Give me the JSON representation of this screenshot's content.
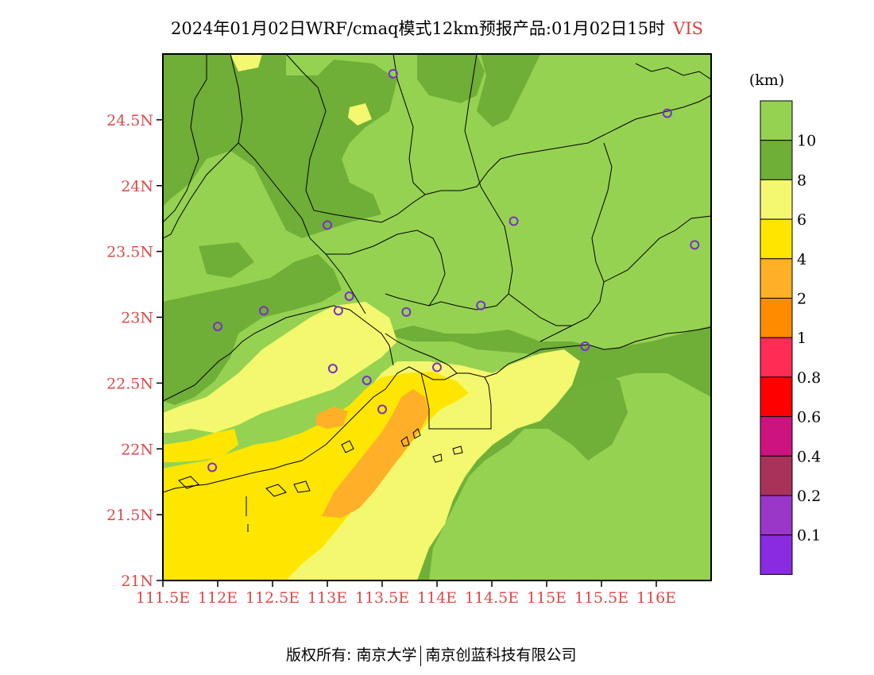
{
  "title": {
    "text": "2024年01月02日WRF/cmaq模式12km预报产品:01月02日15时",
    "variable": "VIS"
  },
  "map": {
    "lon_range": [
      111.5,
      116.5
    ],
    "lat_range": [
      21.0,
      25.0
    ],
    "lon_ticks": [
      {
        "value": 111.5,
        "label": "111.5E"
      },
      {
        "value": 112.0,
        "label": "112E"
      },
      {
        "value": 112.5,
        "label": "112.5E"
      },
      {
        "value": 113.0,
        "label": "113E"
      },
      {
        "value": 113.5,
        "label": "113.5E"
      },
      {
        "value": 114.0,
        "label": "114E"
      },
      {
        "value": 114.5,
        "label": "114.5E"
      },
      {
        "value": 115.0,
        "label": "115E"
      },
      {
        "value": 115.5,
        "label": "115.5E"
      },
      {
        "value": 116.0,
        "label": "116E"
      }
    ],
    "lat_ticks": [
      {
        "value": 21.0,
        "label": "21N"
      },
      {
        "value": 21.5,
        "label": "21.5N"
      },
      {
        "value": 22.0,
        "label": "22N"
      },
      {
        "value": 22.5,
        "label": "22.5N"
      },
      {
        "value": 23.0,
        "label": "23N"
      },
      {
        "value": 23.5,
        "label": "23.5N"
      },
      {
        "value": 24.0,
        "label": "24N"
      },
      {
        "value": 24.5,
        "label": "24.5N"
      }
    ],
    "stations": [
      {
        "lon": 113.6,
        "lat": 24.85
      },
      {
        "lon": 116.1,
        "lat": 24.55
      },
      {
        "lon": 113.0,
        "lat": 23.7
      },
      {
        "lon": 114.7,
        "lat": 23.73
      },
      {
        "lon": 116.35,
        "lat": 23.55
      },
      {
        "lon": 113.2,
        "lat": 23.16
      },
      {
        "lon": 112.42,
        "lat": 23.05
      },
      {
        "lon": 113.1,
        "lat": 23.05
      },
      {
        "lon": 113.72,
        "lat": 23.04
      },
      {
        "lon": 114.4,
        "lat": 23.09
      },
      {
        "lon": 112.0,
        "lat": 22.93
      },
      {
        "lon": 115.35,
        "lat": 22.78
      },
      {
        "lon": 113.05,
        "lat": 22.61
      },
      {
        "lon": 114.0,
        "lat": 22.62
      },
      {
        "lon": 113.36,
        "lat": 22.52
      },
      {
        "lon": 113.5,
        "lat": 22.3
      },
      {
        "lon": 111.95,
        "lat": 21.86
      }
    ]
  },
  "colorbar": {
    "unit": "(km)",
    "colors": [
      "#95d251",
      "#6fae37",
      "#f4f86e",
      "#ffe600",
      "#ffb028",
      "#ff8c00",
      "#ff2d55",
      "#ff0000",
      "#cc1380",
      "#a8325a",
      "#9a36c8",
      "#8a2be2"
    ],
    "labels": [
      "10",
      "8",
      "6",
      "4",
      "2",
      "1",
      "0.8",
      "0.6",
      "0.4",
      "0.2",
      "0.1"
    ]
  },
  "footer": {
    "left": "版权所有: 南京大学",
    "right": "南京创蓝科技有限公司"
  }
}
